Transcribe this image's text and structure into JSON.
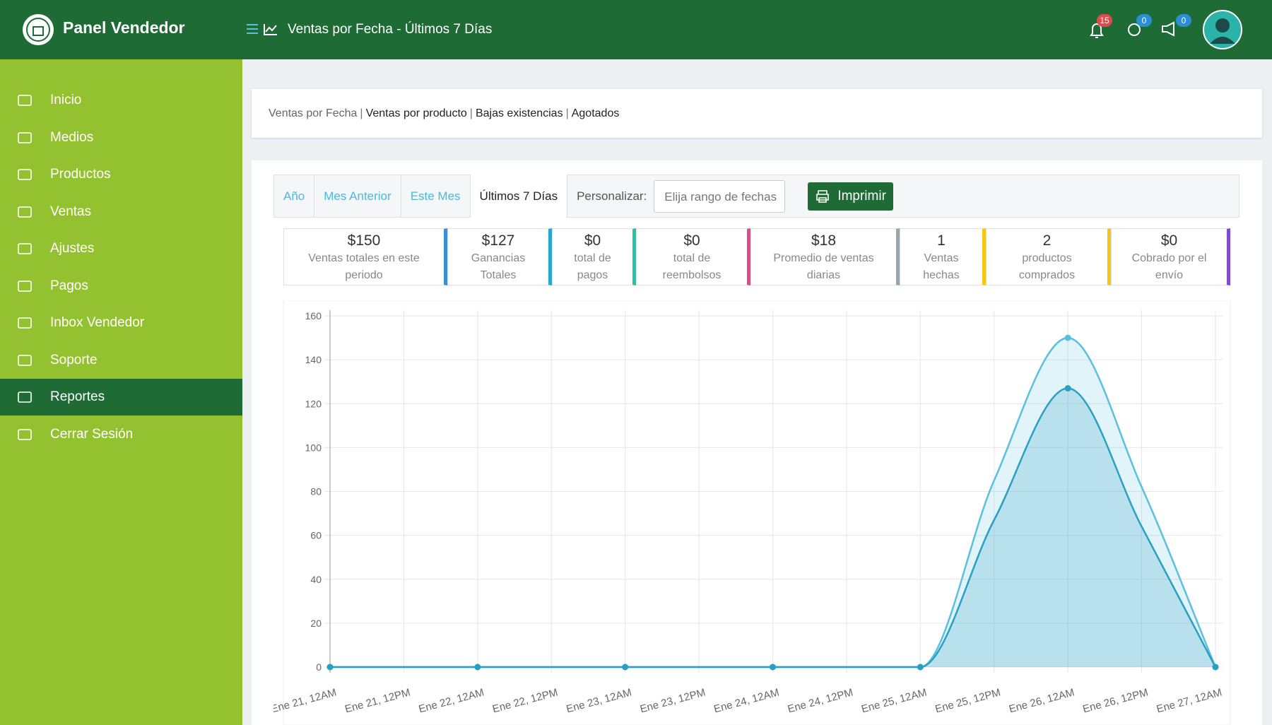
{
  "header": {
    "brand": "Panel Vendedor",
    "page_title": "Ventas por Fecha - Últimos 7 Días",
    "badges": [
      15,
      0,
      0
    ]
  },
  "menu": [
    "Inicio",
    "Medios",
    "Productos",
    "Ventas",
    "Ajustes",
    "Pagos",
    "Inbox Vendedor",
    "Soporte",
    "Reportes",
    "Cerrar Sesión"
  ],
  "active_menu": 8,
  "breadcrumb": {
    "links": [
      "Ventas por Fecha",
      "Ventas por producto",
      "Bajas existencias",
      "Agotados"
    ],
    "separator": "|"
  },
  "tabs": [
    "Año",
    "Mes Anterior",
    "Este Mes",
    "Últimos 7 Días"
  ],
  "active_tab": 3,
  "custom_label": "Personalizar:",
  "date_placeholder": "Elija rango de fechas",
  "print_button": "Imprimir",
  "stats": [
    {
      "value": "$150",
      "label": "Ventas totales en este periodo",
      "color": "#3a8fd6"
    },
    {
      "value": "$127",
      "label": "Ganancias Totales",
      "color": "#2ba6cf"
    },
    {
      "value": "$0",
      "label": "total de pagos",
      "color": "#23c6a4"
    },
    {
      "value": "$0",
      "label": "total de reembolsos",
      "color": "#e04a8a"
    },
    {
      "value": "$18",
      "label": "Promedio de ventas diarias",
      "color": "#9aa5a8"
    },
    {
      "value": "1",
      "label": "Ventas hechas",
      "color": "#f5c518"
    },
    {
      "value": "2",
      "label": "productos comprados",
      "color": "#f5c518"
    },
    {
      "value": "$0",
      "label": "Cobrado por el envío",
      "color": "#7e4bd0"
    }
  ],
  "chart_data": {
    "type": "line",
    "categories": [
      "Ene 21, 12AM",
      "Ene 21, 12PM",
      "Ene 22, 12AM",
      "Ene 22, 12PM",
      "Ene 23, 12AM",
      "Ene 23, 12PM",
      "Ene 24, 12AM",
      "Ene 24, 12PM",
      "Ene 25, 12AM",
      "Ene 25, 12PM",
      "Ene 26, 12AM",
      "Ene 26, 12PM",
      "Ene 27, 12AM"
    ],
    "series": [
      {
        "color": "#5bc0de",
        "values": [
          0,
          0,
          0,
          0,
          0,
          0,
          0,
          0,
          0,
          85,
          150,
          82,
          0
        ]
      },
      {
        "color": "#2a9fc4",
        "values": [
          0,
          0,
          0,
          0,
          0,
          0,
          0,
          0,
          0,
          67,
          127,
          64,
          0
        ]
      }
    ],
    "ylim": [
      0,
      160
    ],
    "yticks": [
      0,
      20,
      40,
      60,
      80,
      100,
      120,
      140,
      160
    ],
    "grid": true
  }
}
